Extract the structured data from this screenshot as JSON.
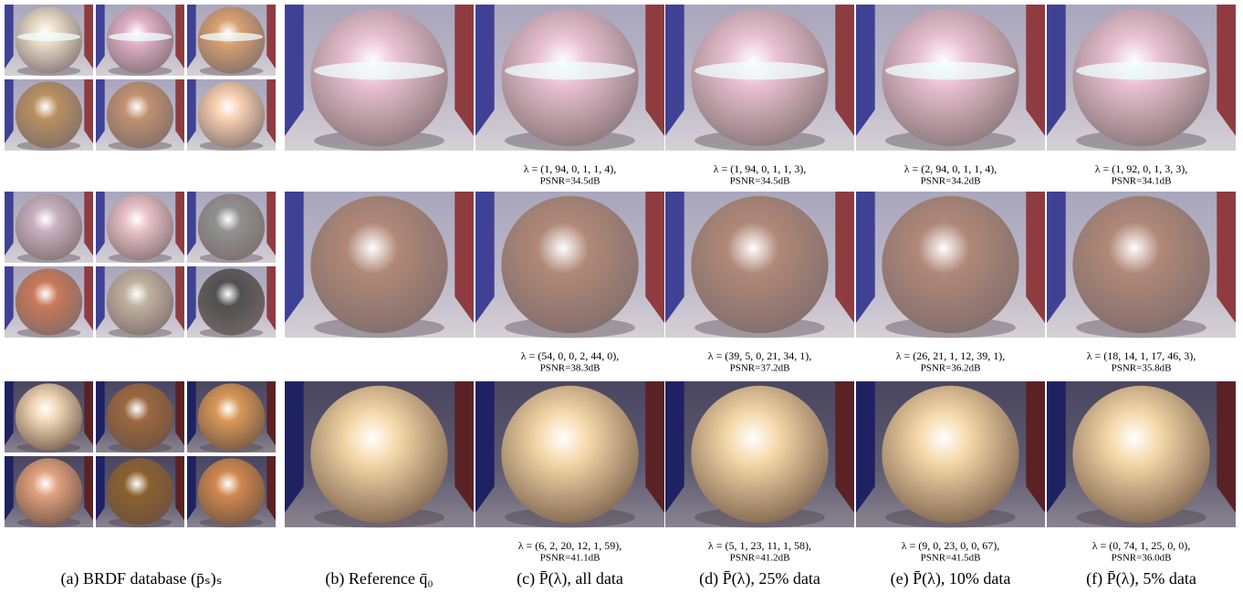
{
  "captions": [
    "(a) BRDF database (p̄ₛ)ₛ",
    "(b) Reference q̄₀",
    "(c) P̄(λ), all data",
    "(d) P̄(λ), 25% data",
    "(e) P̄(λ), 10% data",
    "(f) P̄(λ), 5% data"
  ],
  "rows": [
    {
      "results": [
        {
          "lambda": "λ = (1, 94, 0, 1, 1, 4),",
          "psnr": "PSNR=34.5dB"
        },
        {
          "lambda": "λ = (1, 94, 0, 1, 1, 3),",
          "psnr": "PSNR=34.5dB"
        },
        {
          "lambda": "λ = (2, 94, 0, 1, 1, 4),",
          "psnr": "PSNR=34.2dB"
        },
        {
          "lambda": "λ = (1, 92, 0, 1, 3, 3),",
          "psnr": "PSNR=34.1dB"
        }
      ]
    },
    {
      "results": [
        {
          "lambda": "λ = (54, 0, 0, 2, 44, 0),",
          "psnr": "PSNR=38.3dB"
        },
        {
          "lambda": "λ = (39, 5, 0, 21, 34, 1),",
          "psnr": "PSNR=37.2dB"
        },
        {
          "lambda": "λ = (26, 21, 1, 12, 39, 1),",
          "psnr": "PSNR=36.2dB"
        },
        {
          "lambda": "λ = (18, 14, 1, 17, 46, 3),",
          "psnr": "PSNR=35.8dB"
        }
      ]
    },
    {
      "results": [
        {
          "lambda": "λ = (6, 2, 20, 12, 1, 59),",
          "psnr": "PSNR=41.1dB"
        },
        {
          "lambda": "λ = (5, 1, 23, 11, 1, 58),",
          "psnr": "PSNR=41.2dB"
        },
        {
          "lambda": "λ = (9, 0, 23, 0, 0, 67),",
          "psnr": "PSNR=41.5dB"
        },
        {
          "lambda": "λ = (0, 74, 1, 25, 0, 0),",
          "psnr": "PSNR=36.0dB"
        }
      ]
    }
  ]
}
